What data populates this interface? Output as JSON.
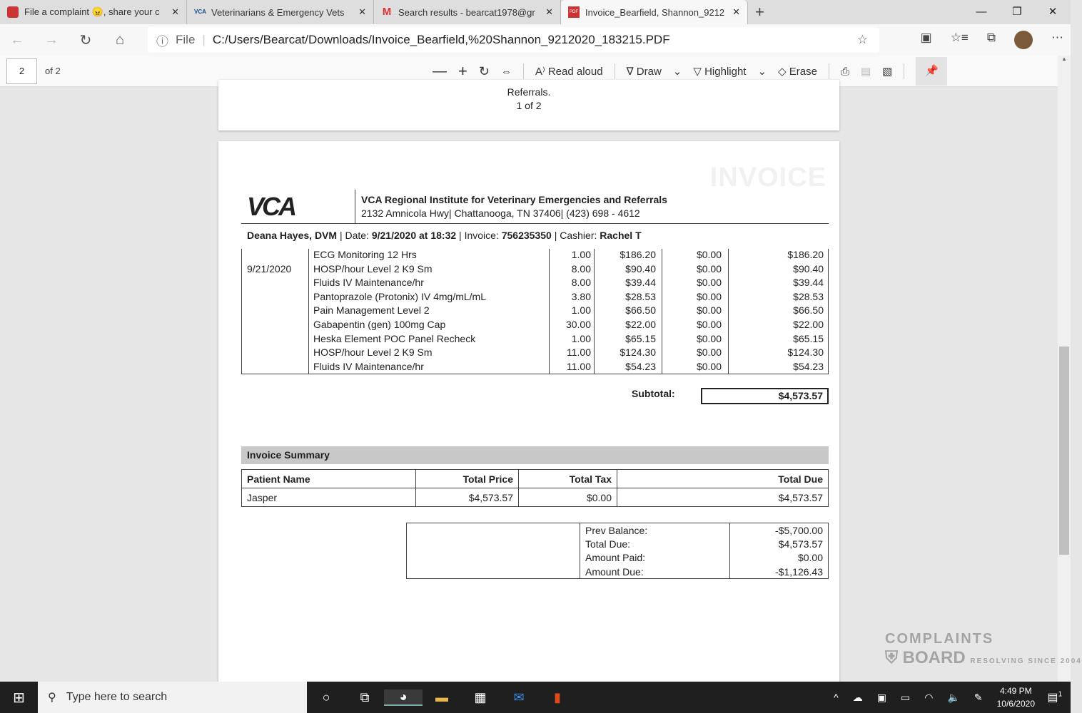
{
  "browser": {
    "tabs": [
      {
        "title": "File a complaint 😠, share your c",
        "icon": "shield-icon"
      },
      {
        "title": "Veterinarians & Emergency Vets",
        "icon": "vca-icon"
      },
      {
        "title": "Search results - bearcat1978@gr",
        "icon": "gmail-icon"
      },
      {
        "title": "Invoice_Bearfield, Shannon_9212",
        "icon": "pdf-icon",
        "active": true
      }
    ],
    "address_prefix": "File",
    "url": "C:/Users/Bearcat/Downloads/Invoice_Bearfield,%20Shannon_9212020_183215.PDF"
  },
  "pdf_toolbar": {
    "page": "2",
    "of": "of 2",
    "read_aloud": "Read aloud",
    "draw": "Draw",
    "highlight": "Highlight",
    "erase": "Erase"
  },
  "page1": {
    "line1": "Referrals.",
    "line2": "1 of 2"
  },
  "invoice": {
    "watermark": "INVOICE",
    "logo": "VCA",
    "clinic_name": "VCA Regional Institute for Veterinary Emergencies and Referrals",
    "clinic_address": "2132 Amnicola Hwy| Chattanooga, TN 37406| (423) 698 - 4612",
    "doctor": "Deana Hayes, DVM",
    "date_label": "Date:",
    "date": "9/21/2020 at 18:32",
    "invoice_label": "Invoice:",
    "invoice_no": "756235350",
    "cashier_label": "Cashier:",
    "cashier": "Rachel T",
    "items": [
      {
        "date": "",
        "desc": "ECG Monitoring 12 Hrs",
        "qty": "1.00",
        "price": "$186.20",
        "tax": "$0.00",
        "total": "$186.20"
      },
      {
        "date": "9/21/2020",
        "desc": "HOSP/hour Level 2 K9 Sm",
        "qty": "8.00",
        "price": "$90.40",
        "tax": "$0.00",
        "total": "$90.40"
      },
      {
        "date": "",
        "desc": "Fluids IV Maintenance/hr",
        "qty": "8.00",
        "price": "$39.44",
        "tax": "$0.00",
        "total": "$39.44"
      },
      {
        "date": "",
        "desc": "Pantoprazole (Protonix) IV 4mg/mL/mL",
        "qty": "3.80",
        "price": "$28.53",
        "tax": "$0.00",
        "total": "$28.53"
      },
      {
        "date": "",
        "desc": "Pain Management Level 2",
        "qty": "1.00",
        "price": "$66.50",
        "tax": "$0.00",
        "total": "$66.50"
      },
      {
        "date": "",
        "desc": "Gabapentin (gen) 100mg Cap",
        "qty": "30.00",
        "price": "$22.00",
        "tax": "$0.00",
        "total": "$22.00"
      },
      {
        "date": "",
        "desc": "Heska Element POC Panel Recheck",
        "qty": "1.00",
        "price": "$65.15",
        "tax": "$0.00",
        "total": "$65.15"
      },
      {
        "date": "",
        "desc": "HOSP/hour Level 2 K9 Sm",
        "qty": "11.00",
        "price": "$124.30",
        "tax": "$0.00",
        "total": "$124.30"
      },
      {
        "date": "",
        "desc": "Fluids IV Maintenance/hr",
        "qty": "11.00",
        "price": "$54.23",
        "tax": "$0.00",
        "total": "$54.23"
      }
    ],
    "subtotal_label": "Subtotal:",
    "subtotal": "$4,573.57",
    "summary_title": "Invoice Summary",
    "summary_headers": [
      "Patient Name",
      "Total Price",
      "Total Tax",
      "Total Due"
    ],
    "summary_row": [
      "Jasper",
      "$4,573.57",
      "$0.00",
      "$4,573.57"
    ],
    "balance": [
      {
        "label": "Prev Balance:",
        "value": "-$5,700.00"
      },
      {
        "label": "Total Due:",
        "value": "$4,573.57"
      },
      {
        "label": "Amount Paid:",
        "value": "$0.00"
      },
      {
        "label": "Amount Due:",
        "value": "-$1,126.43"
      }
    ]
  },
  "taskbar": {
    "search_placeholder": "Type here to search",
    "time": "4:49 PM",
    "date": "10/6/2020",
    "notifications": "1"
  },
  "watermark": {
    "line1": "COMPLAINTS",
    "line2": "BOARD",
    "tagline": "RESOLVING SINCE 2004"
  }
}
